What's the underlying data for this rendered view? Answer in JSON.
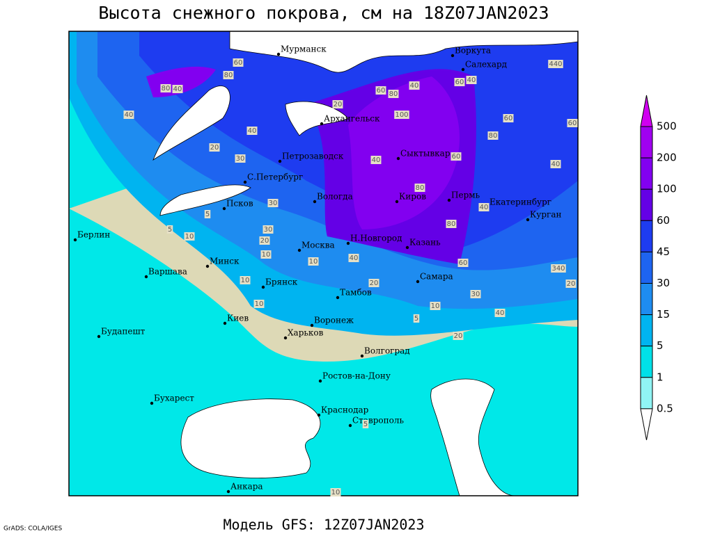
{
  "title": "Высота снежного покрова, см на 18Z07JAN2023",
  "subtitle": "Модель GFS: 12Z07JAN2023",
  "credit": "GrADS: COLA/IGES",
  "legend": {
    "levels": [
      500,
      200,
      100,
      60,
      45,
      30,
      15,
      5,
      1,
      0.5
    ],
    "colors": [
      "#d000f0",
      "#a000f0",
      "#8200f0",
      "#6400e6",
      "#1e3cf0",
      "#1e64f0",
      "#1e8cf0",
      "#00b4f0",
      "#00e0e8",
      "#90f4f4",
      "#ffffff"
    ]
  },
  "cities": [
    "Мурманск",
    "Воркута",
    "Салехард",
    "Архангельск",
    "Петрозаводск",
    "Сыктывкар",
    "С.Петербург",
    "Вологда",
    "Киров",
    "Пермь",
    "Екатеринбург",
    "Курган",
    "Псков",
    "Берлин",
    "Москва",
    "Н.Новгород",
    "Казань",
    "Варшава",
    "Минск",
    "Самара",
    "Брянск",
    "Тамбов",
    "Киев",
    "Воронеж",
    "Будапешт",
    "Харьков",
    "Волгоград",
    "Ростов-на-Дону",
    "Бухарест",
    "Краснодар",
    "Ставрополь",
    "Анкара"
  ],
  "contour_labels": [
    "80",
    "80",
    "40",
    "40",
    "60",
    "60",
    "80",
    "100",
    "40",
    "60",
    "20",
    "30",
    "40",
    "60",
    "40",
    "80",
    "60",
    "40",
    "80",
    "80",
    "40",
    "30",
    "5",
    "10",
    "20",
    "30",
    "10",
    "40",
    "10",
    "40",
    "20",
    "60",
    "30",
    "40",
    "20",
    "10",
    "5",
    "10",
    "5",
    "20",
    "5",
    "10",
    "10",
    "340",
    "20",
    "440",
    "60"
  ]
}
